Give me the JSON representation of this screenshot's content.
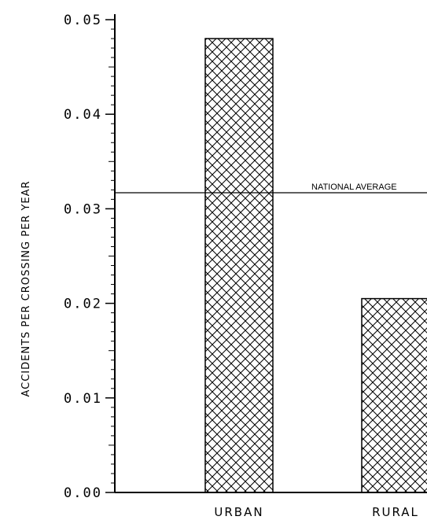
{
  "chart_data": {
    "type": "bar",
    "title": "",
    "xlabel": "",
    "ylabel": "ACCIDENTS PER CROSSING PER YEAR",
    "categories": [
      "URBAN",
      "RURAL"
    ],
    "values": [
      0.048,
      0.0205
    ],
    "ylim": [
      0.0,
      0.05
    ],
    "yticks": [
      "0.00",
      "0.01",
      "0.02",
      "0.03",
      "0.04",
      "0.05"
    ],
    "grid": false,
    "fill_pattern": "crosshatch",
    "reference_line": {
      "label": "NATIONAL AVERAGE",
      "value": 0.0317
    },
    "colors": {
      "ink": "#000000",
      "background": "#ffffff"
    }
  }
}
